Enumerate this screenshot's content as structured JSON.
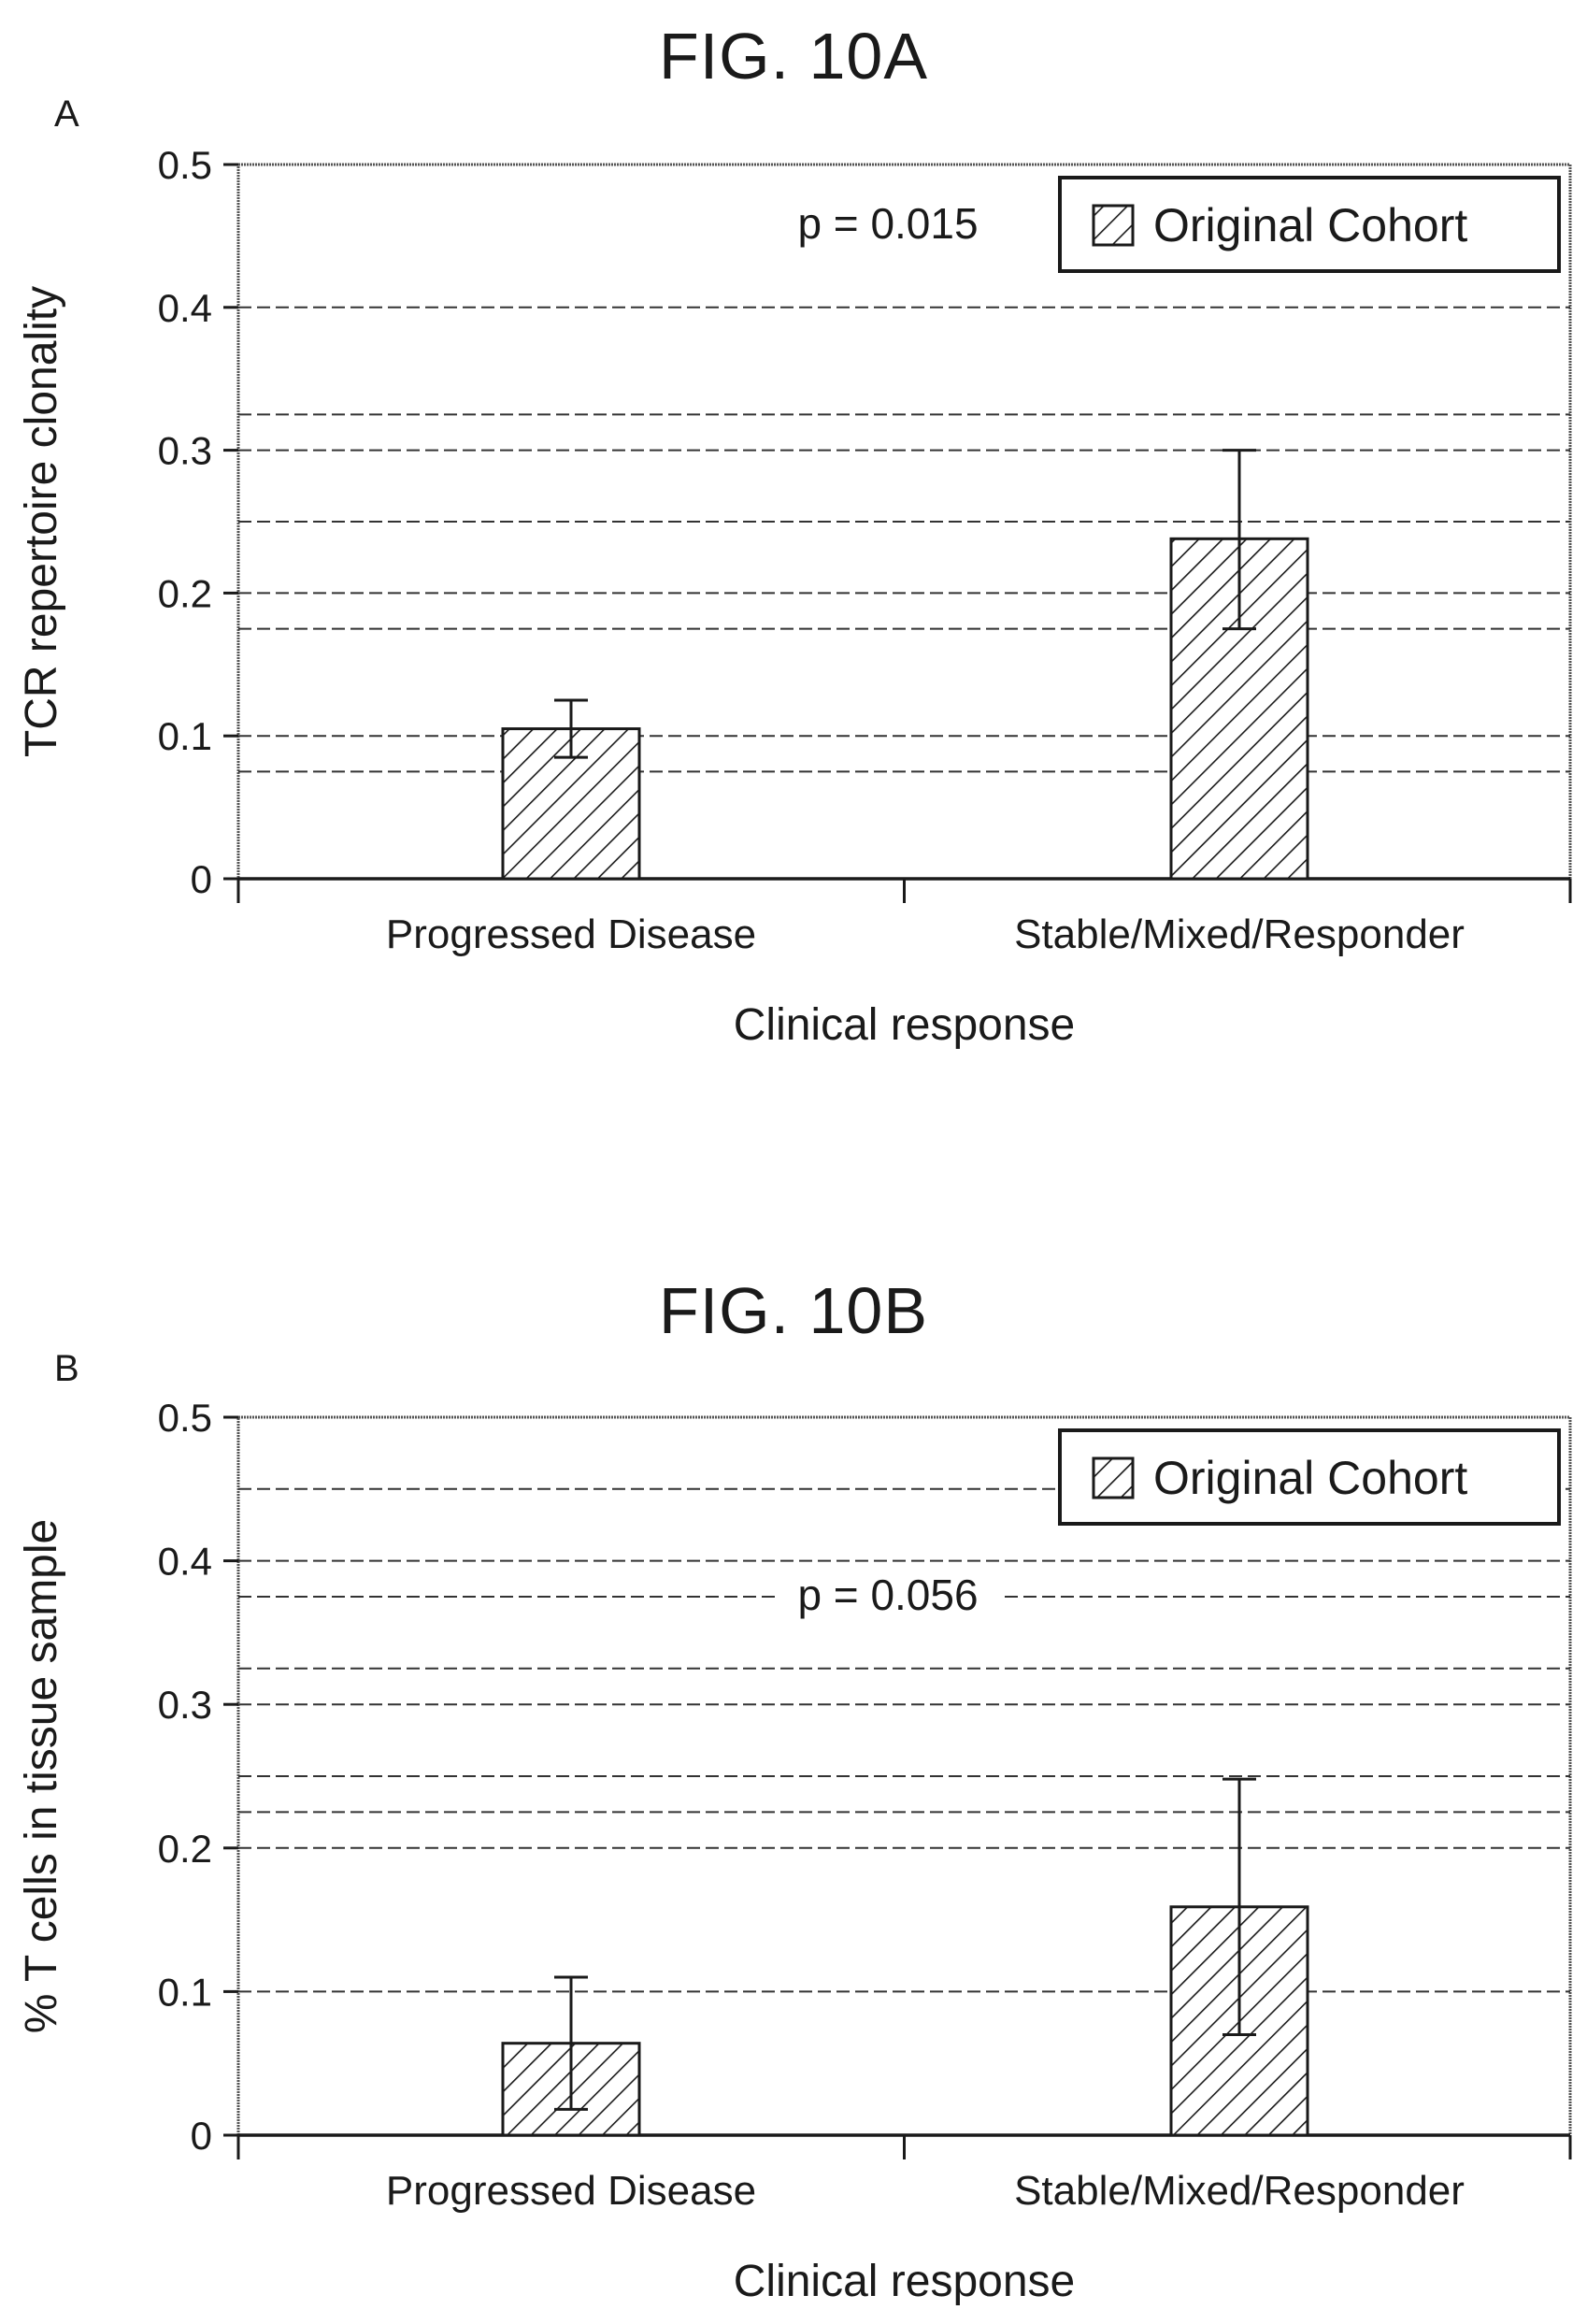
{
  "figures": {
    "a": {
      "title": "FIG. 10A",
      "letter": "A"
    },
    "b": {
      "title": "FIG. 10B",
      "letter": "B"
    }
  },
  "chart_data": [
    {
      "id": "a",
      "type": "bar",
      "categories": [
        "Progressed Disease",
        "Stable/Mixed/Responder"
      ],
      "series": [
        {
          "name": "Original Cohort",
          "values": [
            0.105,
            0.238
          ],
          "error_low": [
            0.085,
            0.175
          ],
          "error_high": [
            0.125,
            0.3
          ]
        }
      ],
      "xlabel": "Clinical response",
      "ylabel": "TCR repertoire clonality",
      "ylim": [
        0,
        0.5
      ],
      "yticks": [
        "0",
        "0.1",
        "0.2",
        "0.3",
        "0.4",
        "0.5"
      ],
      "ytick_values": [
        0,
        0.1,
        0.2,
        0.3,
        0.4,
        0.5
      ],
      "gridlines": [
        0.075,
        0.1,
        0.175,
        0.2,
        0.25,
        0.3,
        0.325,
        0.4
      ],
      "annotation": "p = 0.015",
      "legend": "top-right",
      "pattern": "diagonal hatch"
    },
    {
      "id": "b",
      "type": "bar",
      "categories": [
        "Progressed Disease",
        "Stable/Mixed/Responder"
      ],
      "series": [
        {
          "name": "Original Cohort",
          "values": [
            0.064,
            0.159
          ],
          "error_low": [
            0.018,
            0.07
          ],
          "error_high": [
            0.11,
            0.248
          ]
        }
      ],
      "xlabel": "Clinical response",
      "ylabel": "% T cells in tissue sample",
      "ylim": [
        0,
        0.5
      ],
      "yticks": [
        "0",
        "0.1",
        "0.2",
        "0.3",
        "0.4",
        "0.5"
      ],
      "ytick_values": [
        0,
        0.1,
        0.2,
        0.3,
        0.4,
        0.5
      ],
      "gridlines": [
        0.1,
        0.2,
        0.225,
        0.25,
        0.3,
        0.325,
        0.375,
        0.4,
        0.45
      ],
      "annotation": "p = 0.056",
      "legend": "top-right",
      "pattern": "diagonal hatch"
    }
  ]
}
